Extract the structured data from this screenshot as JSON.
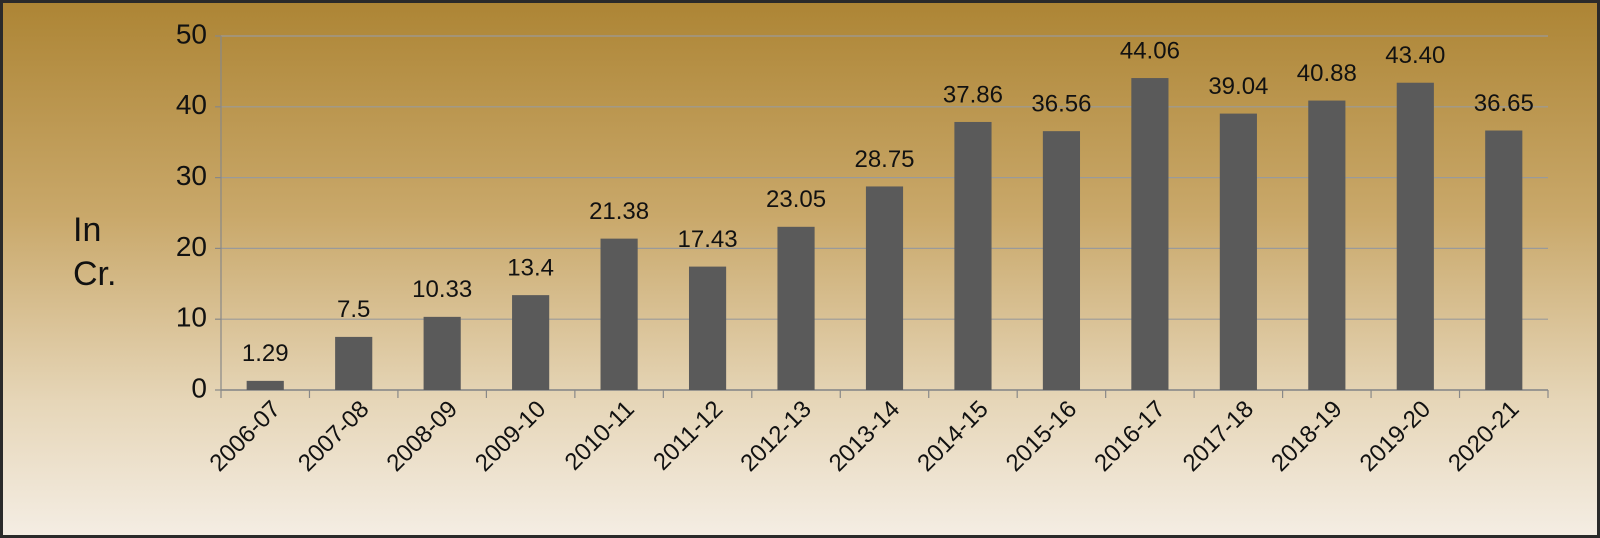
{
  "chart_data": {
    "type": "bar",
    "y_label": "In Cr.",
    "categories": [
      "2006-07",
      "2007-08",
      "2008-09",
      "2009-10",
      "2010-11",
      "2011-12",
      "2012-13",
      "2013-14",
      "2014-15",
      "2015-16",
      "2016-17",
      "2017-18",
      "2018-19",
      "2019-20",
      "2020-21"
    ],
    "values": [
      1.29,
      7.5,
      10.33,
      13.4,
      21.38,
      17.43,
      23.05,
      28.75,
      37.86,
      36.56,
      44.06,
      39.04,
      40.88,
      43.4,
      36.65
    ],
    "value_labels": [
      "1.29",
      "7.5",
      "10.33",
      "13.4",
      "21.38",
      "17.43",
      "23.05",
      "28.75",
      "37.86",
      "36.56",
      "44.06",
      "39.04",
      "40.88",
      "43.40",
      "36.65"
    ],
    "color": "#5a5a5a",
    "ylim": [
      0,
      50
    ],
    "yticks": [
      0,
      10,
      20,
      30,
      40,
      50
    ],
    "grid": true
  }
}
